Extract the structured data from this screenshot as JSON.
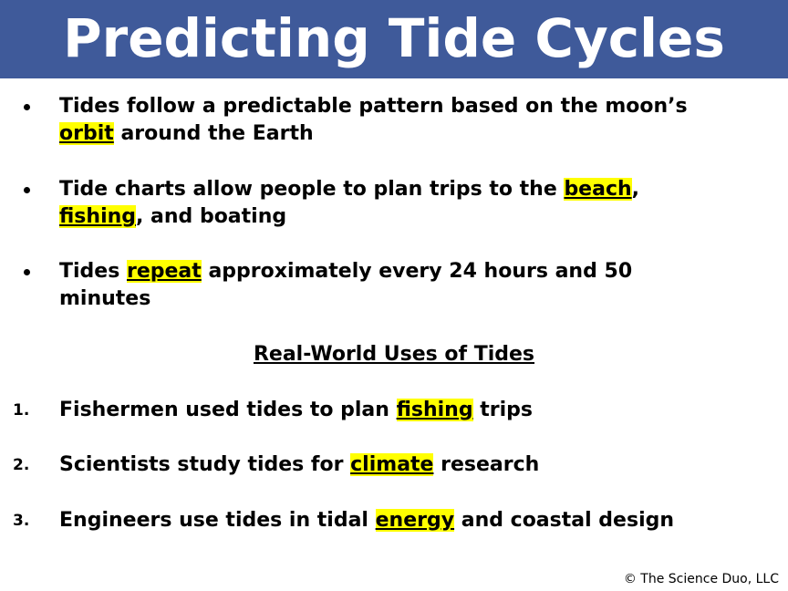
{
  "header": {
    "title": "Predicting Tide Cycles"
  },
  "bullets": [
    {
      "parts": [
        {
          "text": "Tides follow a predictable pattern based on the moon’s "
        },
        {
          "text": "orbit",
          "highlight": true
        },
        {
          "text": " around the Earth"
        }
      ]
    },
    {
      "parts": [
        {
          "text": "Tide charts allow people to plan trips to the "
        },
        {
          "text": "beach",
          "highlight": true
        },
        {
          "text": ", "
        },
        {
          "text": "fishing",
          "highlight": true
        },
        {
          "text": ", and boating"
        }
      ]
    },
    {
      "parts": [
        {
          "text": "Tides "
        },
        {
          "text": "repeat",
          "highlight": true
        },
        {
          "text": " approximately every 24 hours and 50 minutes"
        }
      ]
    }
  ],
  "subheading": "Real-World Uses of Tides",
  "numbered": [
    {
      "number": "1.",
      "parts": [
        {
          "text": "Fishermen used tides to plan "
        },
        {
          "text": "fishing",
          "highlight": true
        },
        {
          "text": " trips"
        }
      ]
    },
    {
      "number": "2.",
      "parts": [
        {
          "text": "Scientists study tides for "
        },
        {
          "text": "climate",
          "highlight": true
        },
        {
          "text": " research"
        }
      ]
    },
    {
      "number": "3.",
      "parts": [
        {
          "text": "Engineers use tides in tidal "
        },
        {
          "text": "energy",
          "highlight": true
        },
        {
          "text": " and coastal design"
        }
      ]
    }
  ],
  "footer": {
    "copyright": "© The Science Duo, LLC"
  }
}
